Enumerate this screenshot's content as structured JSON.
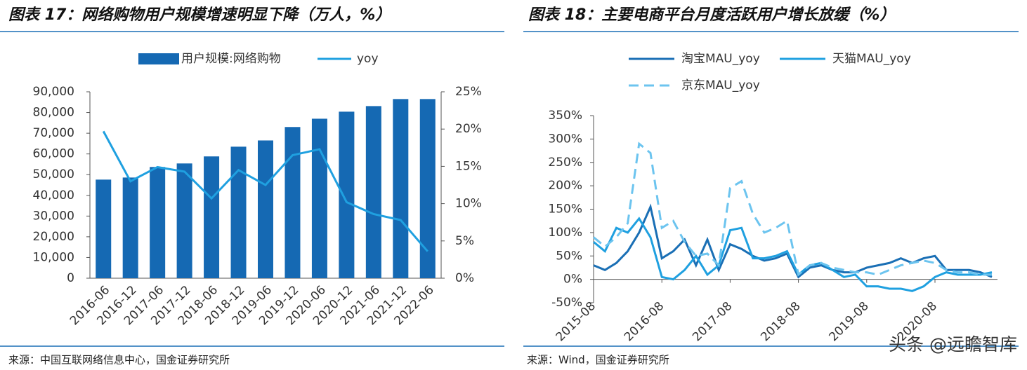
{
  "chart_data": [
    {
      "type": "bar",
      "title": "图表 17：网络购物用户规模增速明显下降（万人，%）",
      "source": "来源：中国互联网络信息中心，国金证券研究所",
      "categories": [
        "2016-06",
        "2016-12",
        "2017-06",
        "2017-12",
        "2018-06",
        "2018-12",
        "2019-06",
        "2019-12",
        "2020-06",
        "2020-12",
        "2021-06",
        "2021-12",
        "2022-06"
      ],
      "series": [
        {
          "name": "用户规模:网络购物",
          "type": "bar",
          "color": "#1569b3",
          "values": [
            47600,
            48600,
            53700,
            55400,
            58800,
            63500,
            66500,
            73000,
            77000,
            80400,
            83100,
            86500,
            86500
          ]
        },
        {
          "name": "yoy",
          "type": "line",
          "axis": "y2",
          "color": "#1fa0e0",
          "values": [
            19.7,
            13.0,
            14.9,
            14.3,
            10.7,
            14.5,
            12.5,
            16.5,
            17.3,
            10.2,
            8.6,
            7.8,
            3.6
          ]
        }
      ],
      "ylim": [
        0,
        90000
      ],
      "yticks": [
        0,
        {
          "value": 10000,
          "label": "10,000"
        },
        {
          "value": 20000,
          "label": "20,000"
        },
        {
          "value": 30000,
          "label": "30,000"
        },
        {
          "value": 40000,
          "label": "40,000"
        },
        {
          "value": 50000,
          "label": "50,000"
        },
        {
          "value": 60000,
          "label": "60,000"
        },
        {
          "value": 70000,
          "label": "70,000"
        },
        {
          "value": 80000,
          "label": "80,000"
        },
        {
          "value": 90000,
          "label": "90,000"
        }
      ],
      "y2lim": [
        0,
        25
      ],
      "y2ticks": [
        {
          "value": 0,
          "label": "0%"
        },
        {
          "value": 5,
          "label": "5%"
        },
        {
          "value": 10,
          "label": "10%"
        },
        {
          "value": 15,
          "label": "15%"
        },
        {
          "value": 20,
          "label": "20%"
        },
        {
          "value": 25,
          "label": "25%"
        }
      ],
      "grid": false,
      "legend": "top"
    },
    {
      "type": "line",
      "title": "图表 18：主要电商平台月度活跃用户增长放缓（%）",
      "source": "来源：Wind，国金证券研究所",
      "x": [
        "2015-08",
        "2015-10",
        "2015-12",
        "2016-02",
        "2016-04",
        "2016-06",
        "2016-08",
        "2016-10",
        "2016-12",
        "2017-02",
        "2017-04",
        "2017-06",
        "2017-08",
        "2017-10",
        "2017-12",
        "2018-02",
        "2018-04",
        "2018-06",
        "2018-08",
        "2018-10",
        "2018-12",
        "2019-02",
        "2019-04",
        "2019-06",
        "2019-08",
        "2019-10",
        "2019-12",
        "2020-02",
        "2020-04",
        "2020-06",
        "2020-08",
        "2020-10",
        "2020-12",
        "2021-02",
        "2021-04",
        "2021-06"
      ],
      "xticks": [
        "2015-08",
        "2016-08",
        "2017-08",
        "2018-08",
        "2019-08",
        "2020-08"
      ],
      "series": [
        {
          "name": "淘宝MAU_yoy",
          "color": "#1a6fb5",
          "line_style": "solid",
          "values": [
            30,
            20,
            35,
            60,
            100,
            155,
            45,
            60,
            85,
            30,
            85,
            20,
            75,
            65,
            50,
            40,
            45,
            55,
            5,
            25,
            30,
            20,
            15,
            15,
            25,
            30,
            35,
            45,
            35,
            45,
            50,
            20,
            20,
            20,
            15,
            5
          ]
        },
        {
          "name": "天猫MAU_yoy",
          "color": "#1fa0e0",
          "line_style": "solid",
          "values": [
            80,
            60,
            110,
            100,
            130,
            90,
            5,
            0,
            20,
            50,
            10,
            30,
            105,
            110,
            45,
            45,
            50,
            60,
            10,
            30,
            35,
            20,
            5,
            10,
            -15,
            -15,
            -20,
            -20,
            -25,
            -15,
            5,
            15,
            10,
            10,
            10,
            15
          ]
        },
        {
          "name": "京东MAU_yoy",
          "color": "#6cc4ef",
          "line_style": "dashed",
          "values": [
            90,
            70,
            90,
            120,
            290,
            270,
            110,
            125,
            80,
            50,
            55,
            30,
            195,
            210,
            140,
            100,
            110,
            125,
            10,
            30,
            35,
            25,
            20,
            15,
            15,
            10,
            20,
            30,
            35,
            40,
            35,
            20,
            15,
            15,
            10,
            10
          ]
        }
      ],
      "ylim": [
        -50,
        350
      ],
      "yticks": [
        {
          "value": -50,
          "label": "-50%"
        },
        {
          "value": 0,
          "label": "0%"
        },
        {
          "value": 50,
          "label": "50%"
        },
        {
          "value": 100,
          "label": "100%"
        },
        {
          "value": 150,
          "label": "150%"
        },
        {
          "value": 200,
          "label": "200%"
        },
        {
          "value": 250,
          "label": "250%"
        },
        {
          "value": 300,
          "label": "300%"
        },
        {
          "value": 350,
          "label": "350%"
        }
      ],
      "grid": false,
      "legend": "top"
    }
  ],
  "watermark": "头条 @远瞻智库"
}
